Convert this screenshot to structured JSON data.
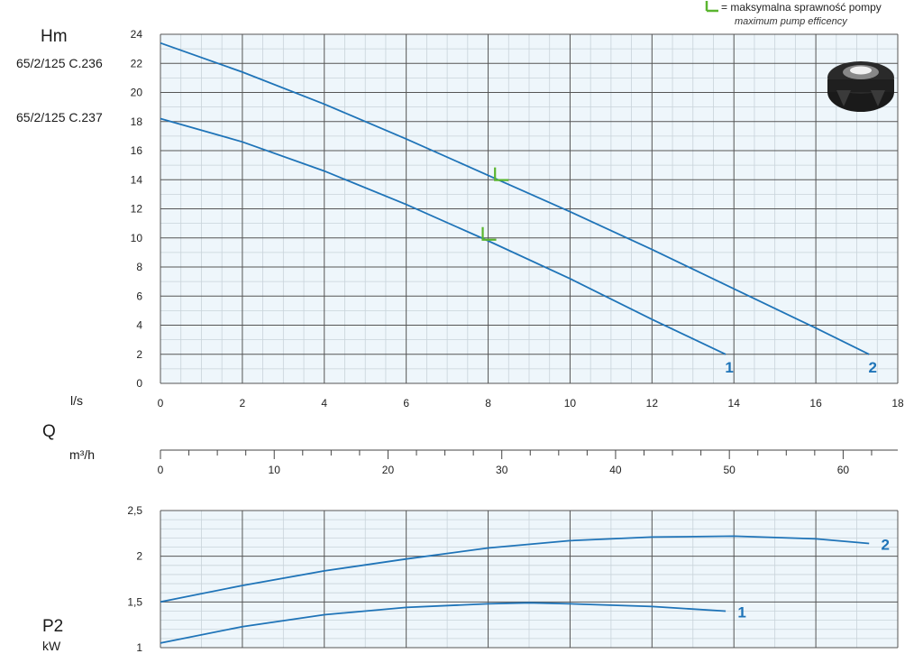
{
  "left_labels": {
    "hm": "Hm",
    "model_a": "65/2/125 C.236",
    "model_b": "65/2/125 C.237",
    "flow_ls": "l/s",
    "q": "Q",
    "flow_m3h": "m³/h",
    "p2": "P2",
    "kw": "kW"
  },
  "legend": {
    "text": "= maksymalna sprawność pompy",
    "sub": "maximum pump efficency"
  },
  "colors": {
    "curve": "#1f74b8",
    "grid_major": "#555555",
    "grid_minor": "#c8d3da",
    "plot_bg": "#eef6fb",
    "marker": "#5ab52f"
  },
  "chart_data": [
    {
      "type": "line",
      "title": "",
      "xlabel": "l/s",
      "ylabel": "Hm",
      "xlim": [
        0,
        18
      ],
      "ylim": [
        0,
        24
      ],
      "x_ticks": [
        "0",
        "2",
        "4",
        "6",
        "8",
        "10",
        "12",
        "14",
        "16",
        "18"
      ],
      "y_ticks": [
        "0",
        "2",
        "4",
        "6",
        "8",
        "10",
        "12",
        "14",
        "16",
        "18",
        "20",
        "22",
        "24"
      ],
      "secondary_axis": {
        "label": "m³/h",
        "ticks": [
          "0",
          "10",
          "20",
          "30",
          "40",
          "50",
          "60"
        ]
      },
      "series": [
        {
          "name": "1",
          "x": [
            0,
            2,
            4,
            6,
            8,
            10,
            12,
            13.8
          ],
          "y": [
            18.2,
            16.6,
            14.6,
            12.3,
            9.8,
            7.2,
            4.4,
            2.0
          ]
        },
        {
          "name": "2",
          "x": [
            0,
            2,
            4,
            6,
            8,
            10,
            12,
            14,
            16,
            17.3
          ],
          "y": [
            23.4,
            21.4,
            19.2,
            16.8,
            14.3,
            11.8,
            9.2,
            6.5,
            3.8,
            2.0
          ]
        }
      ],
      "max_efficiency_points": [
        {
          "series": "1",
          "x": 8.0,
          "y": 10.0
        },
        {
          "series": "2",
          "x": 8.3,
          "y": 14.1
        }
      ]
    },
    {
      "type": "line",
      "title": "",
      "xlabel": "",
      "ylabel": "P2 kW",
      "xlim": [
        0,
        18
      ],
      "ylim": [
        1,
        2.5
      ],
      "y_ticks": [
        "1",
        "1,5",
        "2",
        "2,5"
      ],
      "series": [
        {
          "name": "1",
          "x": [
            0,
            2,
            4,
            6,
            8,
            9,
            10,
            12,
            13.8
          ],
          "y": [
            1.05,
            1.23,
            1.36,
            1.44,
            1.48,
            1.49,
            1.48,
            1.45,
            1.4
          ]
        },
        {
          "name": "2",
          "x": [
            0,
            2,
            4,
            6,
            8,
            10,
            12,
            14,
            16,
            17.3
          ],
          "y": [
            1.5,
            1.68,
            1.84,
            1.97,
            2.09,
            2.17,
            2.21,
            2.22,
            2.19,
            2.14
          ]
        }
      ]
    }
  ]
}
